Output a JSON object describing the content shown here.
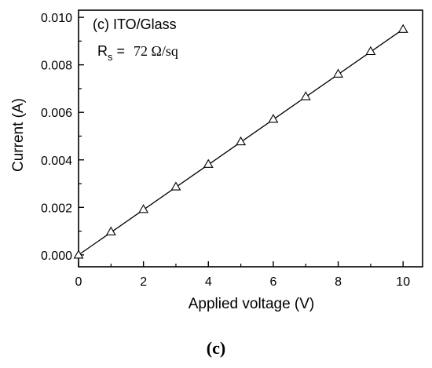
{
  "chart_data": {
    "type": "line",
    "annotation": "(c) ITO/Glass",
    "rs_label": {
      "main": "R",
      "sub": "s",
      "eq": " = ",
      "value": "72 Ω/sq"
    },
    "xlabel": "Applied voltage (V)",
    "ylabel": "Current (A)",
    "xlim": [
      0,
      10.6
    ],
    "ylim": [
      -0.0005,
      0.0103
    ],
    "xticks": [
      0,
      2,
      4,
      6,
      8,
      10
    ],
    "xtick_labels": [
      "0",
      "2",
      "4",
      "6",
      "8",
      "10"
    ],
    "yticks": [
      0.0,
      0.002,
      0.004,
      0.006,
      0.008,
      0.01
    ],
    "ytick_labels": [
      "0.000",
      "0.002",
      "0.004",
      "0.006",
      "0.008",
      "0.010"
    ],
    "grid": false,
    "series": [
      {
        "marker": "open-triangle",
        "x": [
          0,
          1,
          2,
          3,
          4,
          5,
          6,
          7,
          8,
          9,
          10
        ],
        "y": [
          0.0,
          0.00098,
          0.00192,
          0.00287,
          0.00382,
          0.00477,
          0.00572,
          0.00667,
          0.00762,
          0.00857,
          0.0095
        ]
      }
    ],
    "fit_line": {
      "x": [
        0,
        10
      ],
      "y": [
        0.0,
        0.0095
      ]
    }
  },
  "caption": "(c)"
}
